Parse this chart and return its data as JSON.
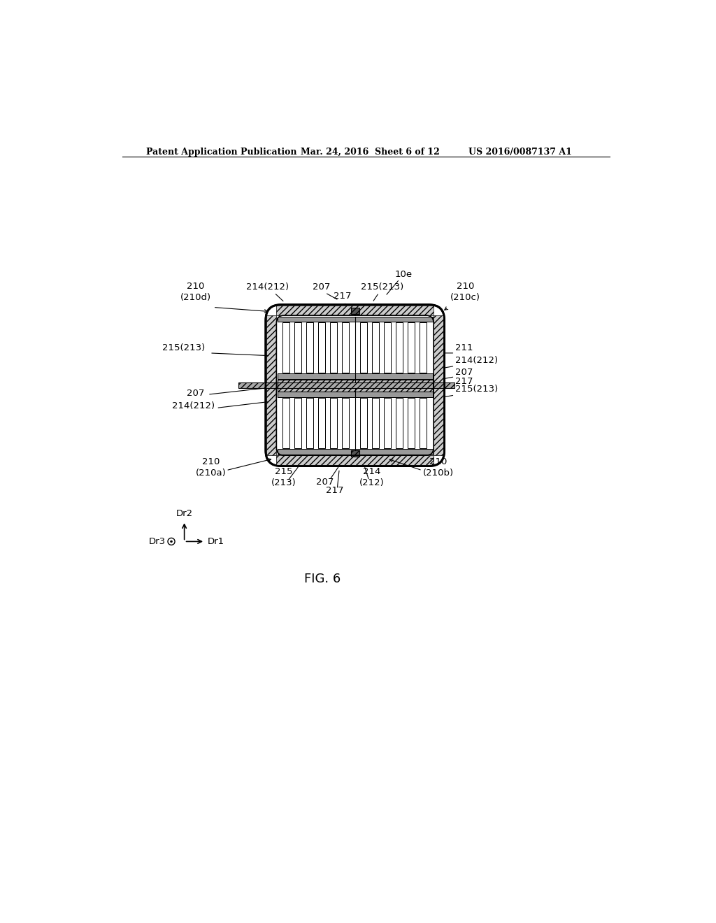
{
  "bg_color": "#ffffff",
  "line_color": "#000000",
  "header_left": "Patent Application Publication",
  "header_center": "Mar. 24, 2016  Sheet 6 of 12",
  "header_right": "US 2016/0087137 A1",
  "fig_label": "FIG. 6",
  "label_10e": "10e",
  "label_211": "211",
  "label_207": "207",
  "label_217": "217",
  "label_214_212": "214(212)",
  "label_215_213": "215(213)",
  "label_210_210d": "210\n(210d)",
  "label_210_210c": "210\n(210c)",
  "label_210_210a": "210\n(210a)",
  "label_210_210b": "210\n(210b)",
  "label_215_213_b": "215\n(213)",
  "label_214_212_b": "214\n(212)"
}
